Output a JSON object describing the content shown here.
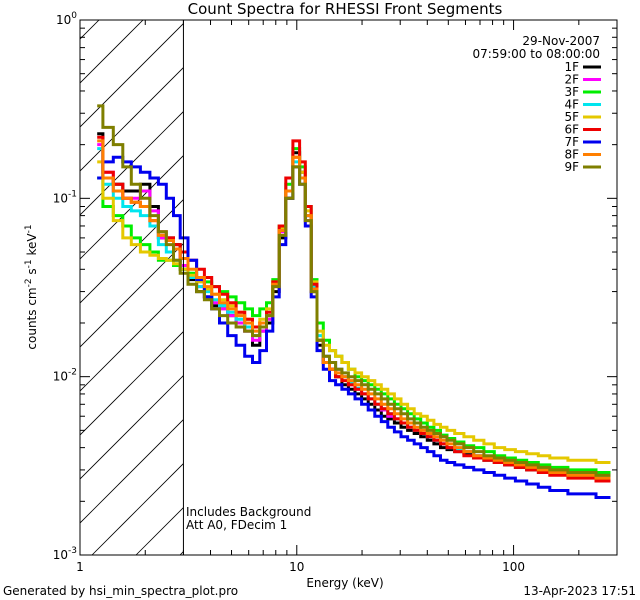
{
  "chart_data": {
    "type": "line",
    "title": "Count Spectra for RHESSI Front Segments",
    "xlabel": "Energy (keV)",
    "ylabel_parts": {
      "base": "counts cm",
      "exp1": "-2",
      "mid": " s",
      "exp2": "-1",
      "unit": " keV",
      "exp3": "-1"
    },
    "xscale": "log",
    "yscale": "log",
    "xlim": [
      1,
      300
    ],
    "ylim": [
      0.001,
      1
    ],
    "x_ticks": [
      {
        "v": 1,
        "label": "1"
      },
      {
        "v": 10,
        "label": "10"
      },
      {
        "v": 100,
        "label": "100"
      }
    ],
    "y_ticks": [
      {
        "v": 0.001,
        "base": "10",
        "exp": "-3"
      },
      {
        "v": 0.01,
        "base": "10",
        "exp": "-2"
      },
      {
        "v": 0.1,
        "base": "10",
        "exp": "-1"
      },
      {
        "v": 1,
        "base": "10",
        "exp": "0"
      }
    ],
    "date": "29-Nov-2007",
    "time_range": "07:59:00 to 08:00:00",
    "annotations": [
      "Includes Background",
      "Att A0, FDecim 1"
    ],
    "hatched_region": [
      1,
      3
    ],
    "series": [
      {
        "name": "1F",
        "color": "#000000",
        "values": [
          0.23,
          0.13,
          0.12,
          0.11,
          0.11,
          0.12,
          0.09,
          0.06,
          0.06,
          0.055,
          0.04,
          0.035,
          0.03,
          0.028,
          0.025,
          0.025,
          0.022,
          0.02,
          0.018,
          0.015,
          0.018,
          0.02,
          0.03,
          0.06,
          0.1,
          0.18,
          0.14,
          0.08,
          0.03,
          0.015,
          0.012,
          0.011,
          0.01,
          0.009,
          0.0085,
          0.008,
          0.0075,
          0.007,
          0.0065,
          0.006,
          0.0058,
          0.0055,
          0.0052,
          0.005,
          0.0048,
          0.0046,
          0.0044,
          0.0042,
          0.004,
          0.0039,
          0.0038,
          0.0037,
          0.0035,
          0.0034,
          0.0033,
          0.0032,
          0.0031,
          0.003,
          0.003,
          0.0029,
          0.0028,
          0.0027
        ]
      },
      {
        "name": "2F",
        "color": "#ff00ff",
        "values": [
          0.2,
          0.14,
          0.11,
          0.1,
          0.1,
          0.11,
          0.085,
          0.06,
          0.058,
          0.052,
          0.042,
          0.036,
          0.032,
          0.028,
          0.026,
          0.024,
          0.022,
          0.02,
          0.018,
          0.016,
          0.018,
          0.021,
          0.032,
          0.065,
          0.11,
          0.17,
          0.13,
          0.075,
          0.03,
          0.016,
          0.013,
          0.012,
          0.011,
          0.01,
          0.009,
          0.0085,
          0.008,
          0.0075,
          0.007,
          0.0065,
          0.006,
          0.0058,
          0.0055,
          0.0052,
          0.005,
          0.0048,
          0.0046,
          0.0044,
          0.0042,
          0.004,
          0.0039,
          0.0038,
          0.0036,
          0.0035,
          0.0034,
          0.0033,
          0.0032,
          0.0031,
          0.003,
          0.003,
          0.0029,
          0.0028
        ]
      },
      {
        "name": "3F",
        "color": "#00ee00",
        "values": [
          0.13,
          0.09,
          0.08,
          0.07,
          0.06,
          0.055,
          0.05,
          0.045,
          0.045,
          0.042,
          0.04,
          0.038,
          0.036,
          0.034,
          0.032,
          0.03,
          0.028,
          0.026,
          0.024,
          0.022,
          0.024,
          0.026,
          0.035,
          0.07,
          0.12,
          0.19,
          0.15,
          0.09,
          0.035,
          0.02,
          0.016,
          0.014,
          0.013,
          0.012,
          0.011,
          0.01,
          0.0095,
          0.009,
          0.0085,
          0.008,
          0.0075,
          0.007,
          0.0066,
          0.0062,
          0.0058,
          0.0055,
          0.0052,
          0.005,
          0.0047,
          0.0045,
          0.0043,
          0.0041,
          0.004,
          0.0038,
          0.0036,
          0.0035,
          0.0034,
          0.0033,
          0.0032,
          0.0031,
          0.003,
          0.0029
        ]
      },
      {
        "name": "4F",
        "color": "#00e5ee",
        "values": [
          0.19,
          0.12,
          0.1,
          0.09,
          0.085,
          0.08,
          0.07,
          0.055,
          0.05,
          0.045,
          0.04,
          0.036,
          0.032,
          0.03,
          0.027,
          0.025,
          0.023,
          0.021,
          0.019,
          0.017,
          0.019,
          0.022,
          0.033,
          0.066,
          0.11,
          0.16,
          0.13,
          0.08,
          0.032,
          0.017,
          0.013,
          0.012,
          0.011,
          0.01,
          0.0092,
          0.0086,
          0.008,
          0.0075,
          0.007,
          0.0066,
          0.0062,
          0.0058,
          0.0055,
          0.0052,
          0.005,
          0.0048,
          0.0046,
          0.0044,
          0.0042,
          0.004,
          0.0039,
          0.0038,
          0.0036,
          0.0035,
          0.0034,
          0.0033,
          0.0032,
          0.0031,
          0.003,
          0.0029,
          0.0028,
          0.0027
        ]
      },
      {
        "name": "5F",
        "color": "#e5c800",
        "values": [
          0.16,
          0.1,
          0.075,
          0.06,
          0.055,
          0.05,
          0.048,
          0.046,
          0.045,
          0.043,
          0.04,
          0.037,
          0.034,
          0.031,
          0.029,
          0.027,
          0.025,
          0.023,
          0.021,
          0.019,
          0.021,
          0.024,
          0.034,
          0.068,
          0.11,
          0.17,
          0.14,
          0.085,
          0.034,
          0.018,
          0.015,
          0.014,
          0.013,
          0.012,
          0.011,
          0.0105,
          0.01,
          0.0095,
          0.009,
          0.0085,
          0.008,
          0.0075,
          0.007,
          0.0066,
          0.0062,
          0.006,
          0.0057,
          0.0054,
          0.0052,
          0.005,
          0.0048,
          0.0046,
          0.0044,
          0.0042,
          0.004,
          0.0039,
          0.0038,
          0.0037,
          0.0036,
          0.0035,
          0.0034,
          0.0033
        ]
      },
      {
        "name": "6F",
        "color": "#ee0000",
        "values": [
          0.22,
          0.14,
          0.12,
          0.1,
          0.095,
          0.09,
          0.075,
          0.065,
          0.06,
          0.055,
          0.05,
          0.045,
          0.04,
          0.036,
          0.032,
          0.029,
          0.026,
          0.023,
          0.021,
          0.019,
          0.02,
          0.023,
          0.034,
          0.07,
          0.13,
          0.21,
          0.16,
          0.09,
          0.033,
          0.016,
          0.012,
          0.011,
          0.01,
          0.0095,
          0.009,
          0.0085,
          0.008,
          0.0075,
          0.007,
          0.0066,
          0.0062,
          0.0058,
          0.0055,
          0.0052,
          0.005,
          0.0048,
          0.0046,
          0.0044,
          0.0042,
          0.004,
          0.0038,
          0.0036,
          0.0035,
          0.0034,
          0.0033,
          0.0032,
          0.0031,
          0.003,
          0.0029,
          0.0028,
          0.0027,
          0.0026
        ]
      },
      {
        "name": "7F",
        "color": "#0000ee",
        "values": [
          0.13,
          0.16,
          0.17,
          0.16,
          0.15,
          0.14,
          0.13,
          0.12,
          0.1,
          0.08,
          0.06,
          0.045,
          0.035,
          0.028,
          0.024,
          0.02,
          0.017,
          0.015,
          0.013,
          0.012,
          0.014,
          0.018,
          0.028,
          0.055,
          0.1,
          0.15,
          0.12,
          0.07,
          0.028,
          0.014,
          0.011,
          0.0095,
          0.009,
          0.0085,
          0.008,
          0.0075,
          0.007,
          0.0065,
          0.006,
          0.0056,
          0.0052,
          0.0049,
          0.0046,
          0.0044,
          0.0042,
          0.004,
          0.0038,
          0.0036,
          0.0034,
          0.0033,
          0.0032,
          0.0031,
          0.003,
          0.0029,
          0.0028,
          0.0027,
          0.0026,
          0.0025,
          0.0024,
          0.0023,
          0.0022,
          0.0021
        ]
      },
      {
        "name": "8F",
        "color": "#ff7f00",
        "values": [
          0.21,
          0.13,
          0.11,
          0.1,
          0.095,
          0.09,
          0.075,
          0.062,
          0.058,
          0.052,
          0.046,
          0.04,
          0.036,
          0.032,
          0.029,
          0.026,
          0.024,
          0.022,
          0.02,
          0.018,
          0.02,
          0.022,
          0.033,
          0.066,
          0.11,
          0.17,
          0.13,
          0.08,
          0.031,
          0.016,
          0.012,
          0.011,
          0.0105,
          0.01,
          0.0095,
          0.009,
          0.0085,
          0.008,
          0.0075,
          0.007,
          0.0066,
          0.0062,
          0.0058,
          0.0055,
          0.0052,
          0.005,
          0.0048,
          0.0046,
          0.0044,
          0.0042,
          0.004,
          0.0038,
          0.0036,
          0.0035,
          0.0034,
          0.0033,
          0.0032,
          0.0031,
          0.003,
          0.0029,
          0.0028,
          0.0027
        ]
      },
      {
        "name": "9F",
        "color": "#7f7f00",
        "values": [
          0.33,
          0.25,
          0.2,
          0.15,
          0.12,
          0.1,
          0.08,
          0.065,
          0.055,
          0.045,
          0.038,
          0.033,
          0.03,
          0.027,
          0.024,
          0.022,
          0.02,
          0.019,
          0.018,
          0.017,
          0.019,
          0.022,
          0.032,
          0.062,
          0.1,
          0.15,
          0.12,
          0.075,
          0.03,
          0.016,
          0.013,
          0.012,
          0.011,
          0.0105,
          0.01,
          0.0095,
          0.009,
          0.0085,
          0.008,
          0.0075,
          0.007,
          0.0066,
          0.0062,
          0.0058,
          0.0055,
          0.0052,
          0.005,
          0.0048,
          0.0046,
          0.0044,
          0.0042,
          0.004,
          0.0038,
          0.0036,
          0.0035,
          0.0034,
          0.0033,
          0.0032,
          0.0031,
          0.003,
          0.0029,
          0.0028
        ]
      }
    ],
    "energy_keV": [
      1.2,
      1.35,
      1.5,
      1.65,
      1.8,
      2.0,
      2.2,
      2.4,
      2.6,
      2.8,
      3.0,
      3.3,
      3.6,
      3.9,
      4.2,
      4.6,
      5.0,
      5.5,
      6.0,
      6.5,
      7.0,
      7.5,
      8.0,
      8.6,
      9.2,
      10.0,
      10.6,
      11.3,
      12.0,
      12.8,
      13.7,
      14.6,
      15.6,
      16.7,
      17.9,
      19.2,
      20.6,
      22.1,
      23.7,
      25.4,
      27.2,
      29.2,
      31.3,
      33.6,
      36.0,
      38.6,
      41.4,
      44.4,
      47.6,
      51.0,
      56.0,
      62.0,
      69.0,
      77.0,
      86.0,
      96.0,
      108.0,
      122.0,
      138.0,
      156.0,
      200.0,
      280.0
    ]
  },
  "footer": {
    "generated_by": "Generated by hsi_min_spectra_plot.pro",
    "timestamp": "13-Apr-2023 17:51"
  }
}
